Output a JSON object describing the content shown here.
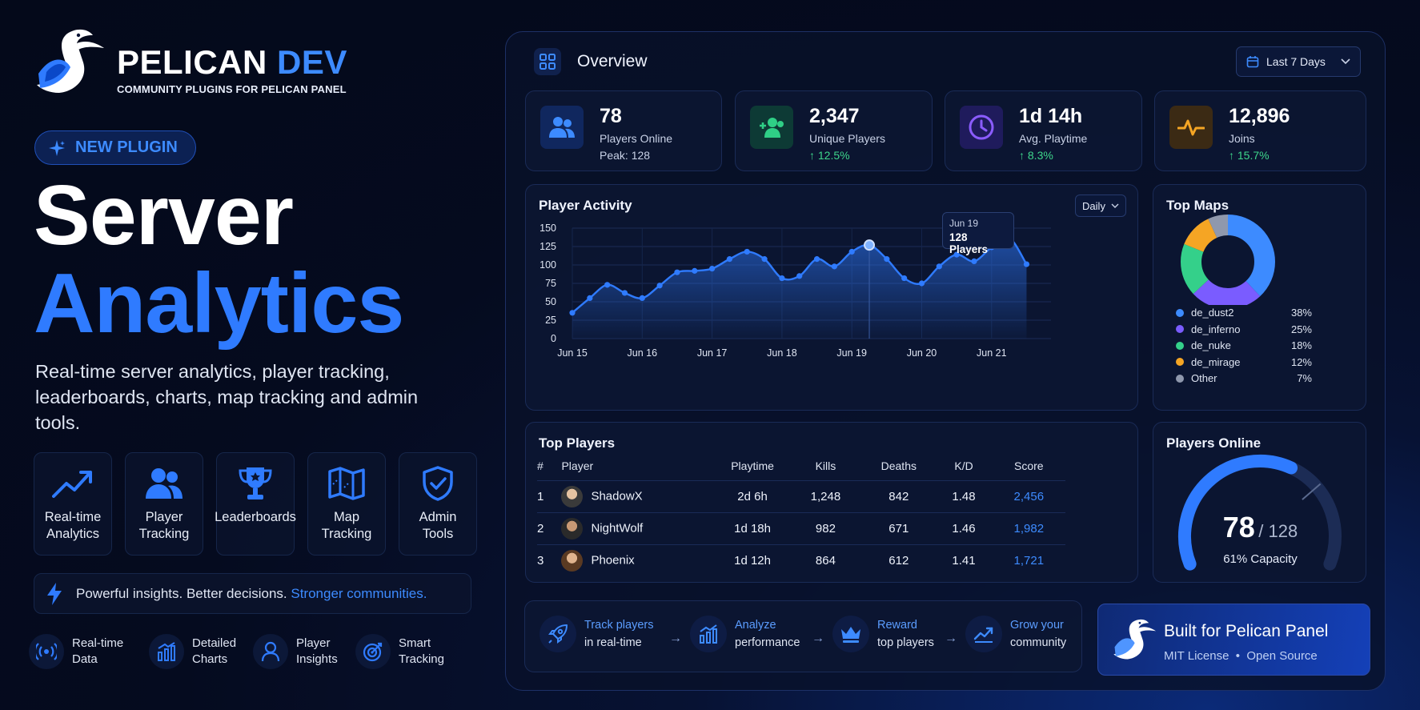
{
  "brand": {
    "name_main": "PELICAN",
    "name_accent": "DEV",
    "tagline": "COMMUNITY PLUGINS FOR PELICAN PANEL"
  },
  "badge": {
    "label": "NEW PLUGIN"
  },
  "hero": {
    "line1": "Server",
    "line2": "Analytics",
    "description": "Real-time server analytics, player tracking, leaderboards, charts, map tracking and admin tools."
  },
  "features": [
    {
      "label": "Real-time\nAnalytics",
      "icon": "trending-up-icon"
    },
    {
      "label": "Player\nTracking",
      "icon": "users-icon"
    },
    {
      "label": "Leaderboards",
      "icon": "trophy-icon"
    },
    {
      "label": "Map\nTracking",
      "icon": "map-icon"
    },
    {
      "label": "Admin\nTools",
      "icon": "shield-check-icon"
    }
  ],
  "insight": {
    "text": "Powerful insights. Better decisions.",
    "accent": "Stronger communities."
  },
  "highlights": [
    {
      "label": "Real-time\nData",
      "icon": "broadcast-icon"
    },
    {
      "label": "Detailed\nCharts",
      "icon": "bar-chart-icon"
    },
    {
      "label": "Player\nInsights",
      "icon": "user-icon"
    },
    {
      "label": "Smart\nTracking",
      "icon": "target-icon"
    }
  ],
  "dashboard": {
    "title": "Overview",
    "range": "Last 7 Days",
    "stats": [
      {
        "value": "78",
        "label": "Players Online",
        "foot": "Peak: 128",
        "trend": false,
        "icon": "users-icon",
        "color": "#3d8bff"
      },
      {
        "value": "2,347",
        "label": "Unique Players",
        "foot": "↑ 12.5%",
        "trend": true,
        "icon": "user-plus-icon",
        "color": "#2fcf86"
      },
      {
        "value": "1d 14h",
        "label": "Avg. Playtime",
        "foot": "↑ 8.3%",
        "trend": true,
        "icon": "clock-icon",
        "color": "#8b5cff"
      },
      {
        "value": "12,896",
        "label": "Joins",
        "foot": "↑ 15.7%",
        "trend": true,
        "icon": "pulse-icon",
        "color": "#f5a524"
      }
    ],
    "activity": {
      "title": "Player Activity",
      "interval": "Daily",
      "tooltip_date": "Jun 19",
      "tooltip_value": "128 Players"
    },
    "top_maps": {
      "title": "Top Maps",
      "items": [
        {
          "name": "de_dust2",
          "pct": "38%",
          "value": 38,
          "color": "#3d8bff"
        },
        {
          "name": "de_inferno",
          "pct": "25%",
          "value": 25,
          "color": "#7a5cff"
        },
        {
          "name": "de_nuke",
          "pct": "18%",
          "value": 18,
          "color": "#34d08a"
        },
        {
          "name": "de_mirage",
          "pct": "12%",
          "value": 12,
          "color": "#f5a524"
        },
        {
          "name": "Other",
          "pct": "7%",
          "value": 7,
          "color": "#8f98ad"
        }
      ]
    },
    "top_players": {
      "title": "Top Players",
      "columns": [
        "#",
        "Player",
        "Playtime",
        "Kills",
        "Deaths",
        "K/D",
        "Score"
      ],
      "rows": [
        [
          "1",
          "ShadowX",
          "2d 6h",
          "1,248",
          "842",
          "1.48",
          "2,456"
        ],
        [
          "2",
          "NightWolf",
          "1d 18h",
          "982",
          "671",
          "1.46",
          "1,982"
        ],
        [
          "3",
          "Phoenix",
          "1d 12h",
          "864",
          "612",
          "1.41",
          "1,721"
        ]
      ]
    },
    "players_online": {
      "title": "Players Online",
      "current": "78",
      "max": "/ 128",
      "capacity": "61% Capacity",
      "fraction": 0.61
    },
    "flow": [
      {
        "accent": "Track players",
        "rest": "in real-time",
        "icon": "rocket-icon"
      },
      {
        "accent": "Analyze",
        "rest": "performance",
        "icon": "analytics-icon"
      },
      {
        "accent": "Reward",
        "rest": "top players",
        "icon": "crown-icon"
      },
      {
        "accent": "Grow your",
        "rest": "community",
        "icon": "growth-icon"
      }
    ],
    "built": {
      "title": "Built for Pelican Panel",
      "license": "MIT License",
      "source": "Open Source",
      "separator": "•"
    }
  },
  "chart_data": {
    "type": "area",
    "title": "Player Activity",
    "x_ticks": [
      "Jun 15",
      "Jun 16",
      "Jun 17",
      "Jun 18",
      "Jun 19",
      "Jun 20",
      "Jun 21"
    ],
    "y_ticks": [
      0,
      25,
      50,
      75,
      100,
      125,
      150
    ],
    "ylim": [
      0,
      150
    ],
    "grid": true,
    "series": [
      {
        "x": [
          15.0,
          15.25,
          15.5,
          15.75,
          16.0,
          16.25,
          16.5,
          16.75,
          17.0,
          17.25,
          17.5,
          17.75,
          18.0,
          18.25,
          18.5,
          18.75,
          19.0,
          19.25,
          19.5,
          19.75,
          20.0,
          20.25,
          20.5,
          20.75,
          21.0,
          21.25,
          21.5
        ],
        "y": [
          35,
          55,
          73,
          62,
          55,
          72,
          90,
          92,
          95,
          108,
          118,
          108,
          82,
          85,
          108,
          98,
          118,
          127,
          108,
          82,
          75,
          98,
          114,
          105,
          124,
          137,
          101
        ]
      }
    ]
  }
}
